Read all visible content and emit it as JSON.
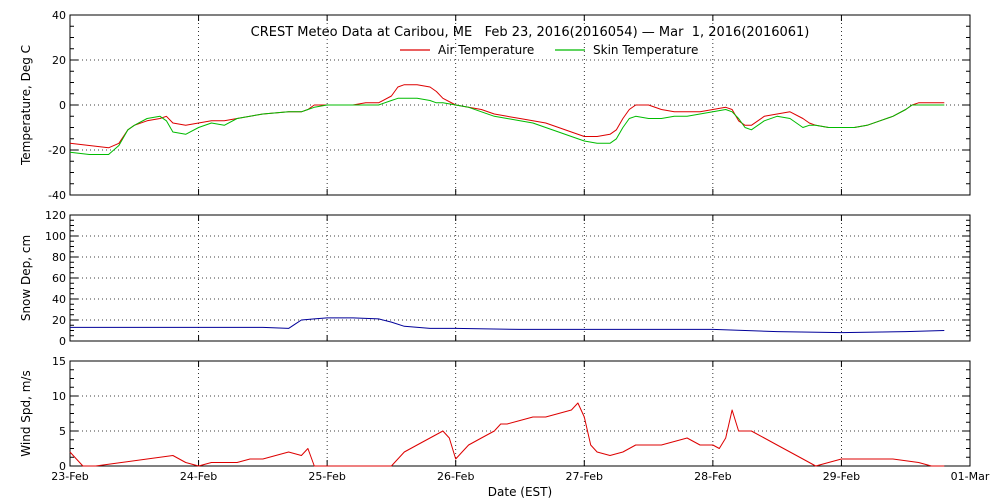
{
  "title": "CREST Meteo Data at Caribou, ME   Feb 23, 2016(2016054) — Mar  1, 2016(2016061)",
  "xlabel": "Date (EST)",
  "x_ticks": [
    "23-Feb",
    "24-Feb",
    "25-Feb",
    "26-Feb",
    "27-Feb",
    "28-Feb",
    "29-Feb",
    "01-Mar"
  ],
  "colors": {
    "air": "#dd0000",
    "skin": "#00bb00",
    "snow": "#000099",
    "wind": "#dd0000"
  },
  "chart_data": [
    {
      "type": "line",
      "ylabel": "Temperature, Deg C",
      "ylim": [
        -40,
        40
      ],
      "yticks": [
        -40,
        -20,
        0,
        20,
        40
      ],
      "xlim": [
        0,
        7
      ],
      "grid": true,
      "legend_position": "top-center",
      "series": [
        {
          "name": "Air Temperature",
          "color_key": "air",
          "x": [
            0,
            0.15,
            0.3,
            0.38,
            0.45,
            0.5,
            0.6,
            0.7,
            0.75,
            0.8,
            0.9,
            1.0,
            1.1,
            1.2,
            1.3,
            1.5,
            1.7,
            1.8,
            1.85,
            1.9,
            2.0,
            2.1,
            2.2,
            2.3,
            2.4,
            2.5,
            2.55,
            2.6,
            2.7,
            2.8,
            2.85,
            2.9,
            3.0,
            3.1,
            3.2,
            3.3,
            3.4,
            3.5,
            3.6,
            3.7,
            3.8,
            3.9,
            4.0,
            4.1,
            4.2,
            4.25,
            4.3,
            4.35,
            4.4,
            4.5,
            4.6,
            4.7,
            4.8,
            4.9,
            5.0,
            5.1,
            5.15,
            5.2,
            5.25,
            5.3,
            5.4,
            5.5,
            5.6,
            5.7,
            5.75,
            5.8,
            5.9,
            6.0,
            6.1,
            6.2,
            6.3,
            6.4,
            6.5,
            6.55,
            6.6,
            6.7,
            6.8
          ],
          "y": [
            -17,
            -18,
            -19,
            -17,
            -11,
            -9,
            -7,
            -6,
            -5,
            -8,
            -9,
            -8,
            -7,
            -7,
            -6,
            -4,
            -3,
            -3,
            -2,
            0,
            0,
            0,
            0,
            1,
            1,
            4,
            8,
            9,
            9,
            8,
            6,
            3,
            0,
            -1,
            -2,
            -4,
            -5,
            -6,
            -7,
            -8,
            -10,
            -12,
            -14,
            -14,
            -13,
            -11,
            -6,
            -2,
            0,
            0,
            -2,
            -3,
            -3,
            -3,
            -2,
            -1,
            -2,
            -7,
            -9,
            -9,
            -5,
            -4,
            -3,
            -6,
            -8,
            -9,
            -10,
            -10,
            -10,
            -9,
            -7,
            -5,
            -2,
            0,
            1,
            1,
            1
          ]
        },
        {
          "name": "Skin Temperature",
          "color_key": "skin",
          "x": [
            0,
            0.15,
            0.3,
            0.38,
            0.45,
            0.5,
            0.6,
            0.7,
            0.75,
            0.8,
            0.9,
            1.0,
            1.1,
            1.2,
            1.3,
            1.5,
            1.7,
            1.8,
            1.85,
            1.9,
            2.0,
            2.1,
            2.2,
            2.3,
            2.4,
            2.5,
            2.55,
            2.6,
            2.7,
            2.8,
            2.85,
            2.9,
            3.0,
            3.1,
            3.2,
            3.3,
            3.4,
            3.5,
            3.6,
            3.7,
            3.8,
            3.9,
            4.0,
            4.1,
            4.2,
            4.25,
            4.3,
            4.35,
            4.4,
            4.5,
            4.6,
            4.7,
            4.8,
            4.9,
            5.0,
            5.1,
            5.15,
            5.2,
            5.25,
            5.3,
            5.4,
            5.5,
            5.6,
            5.7,
            5.75,
            5.8,
            5.9,
            6.0,
            6.1,
            6.2,
            6.3,
            6.4,
            6.5,
            6.55,
            6.6,
            6.7,
            6.8
          ],
          "y": [
            -21,
            -22,
            -22,
            -18,
            -11,
            -9,
            -6,
            -5,
            -7,
            -12,
            -13,
            -10,
            -8,
            -9,
            -6,
            -4,
            -3,
            -3,
            -2,
            -1,
            0,
            0,
            0,
            0,
            0,
            2,
            3,
            3,
            3,
            2,
            1,
            1,
            0,
            -1,
            -3,
            -5,
            -6,
            -7,
            -8,
            -10,
            -12,
            -14,
            -16,
            -17,
            -17,
            -15,
            -10,
            -6,
            -5,
            -6,
            -6,
            -5,
            -5,
            -4,
            -3,
            -2,
            -3,
            -6,
            -10,
            -11,
            -7,
            -5,
            -6,
            -10,
            -9,
            -9,
            -10,
            -10,
            -10,
            -9,
            -7,
            -5,
            -2,
            0,
            0,
            0,
            0
          ]
        }
      ]
    },
    {
      "type": "line",
      "ylabel": "Snow Dep, cm",
      "ylim": [
        0,
        120
      ],
      "yticks": [
        0,
        20,
        40,
        60,
        80,
        100,
        120
      ],
      "xlim": [
        0,
        7
      ],
      "grid": true,
      "series": [
        {
          "color_key": "snow",
          "x": [
            0,
            0.5,
            1.0,
            1.5,
            1.7,
            1.75,
            1.8,
            1.9,
            2.0,
            2.2,
            2.4,
            2.5,
            2.6,
            2.8,
            3.0,
            3.5,
            4.0,
            4.5,
            5.0,
            5.5,
            6.0,
            6.5,
            6.8
          ],
          "y": [
            13,
            13,
            13,
            13,
            12,
            16,
            20,
            21,
            22,
            22,
            21,
            18,
            14,
            12,
            12,
            11,
            11,
            11,
            11,
            9,
            8,
            9,
            10
          ]
        }
      ]
    },
    {
      "type": "line",
      "ylabel": "Wind Spd, m/s",
      "ylim": [
        0,
        15
      ],
      "yticks": [
        0,
        5,
        10,
        15
      ],
      "xlim": [
        0,
        7
      ],
      "grid": true,
      "series": [
        {
          "color_key": "wind",
          "x": [
            0,
            0.05,
            0.1,
            0.2,
            0.4,
            0.6,
            0.8,
            0.9,
            1.0,
            1.1,
            1.2,
            1.3,
            1.4,
            1.5,
            1.6,
            1.7,
            1.8,
            1.85,
            1.9,
            2.0,
            2.2,
            2.4,
            2.5,
            2.6,
            2.7,
            2.8,
            2.9,
            2.95,
            3.0,
            3.05,
            3.1,
            3.2,
            3.3,
            3.35,
            3.4,
            3.5,
            3.6,
            3.7,
            3.8,
            3.9,
            3.95,
            4.0,
            4.05,
            4.1,
            4.2,
            4.3,
            4.4,
            4.5,
            4.6,
            4.7,
            4.8,
            4.9,
            5.0,
            5.05,
            5.1,
            5.15,
            5.2,
            5.3,
            5.4,
            5.5,
            5.6,
            5.7,
            5.8,
            5.9,
            6.0,
            6.2,
            6.4,
            6.6,
            6.7,
            6.8
          ],
          "y": [
            2,
            1,
            0,
            0,
            0.5,
            1,
            1.5,
            0.5,
            0,
            0.5,
            0.5,
            0.5,
            1,
            1,
            1.5,
            2,
            1.5,
            2.5,
            0,
            0,
            0,
            0,
            0,
            2,
            3,
            4,
            5,
            4,
            1,
            2,
            3,
            4,
            5,
            6,
            6,
            6.5,
            7,
            7,
            7.5,
            8,
            9,
            7,
            3,
            2,
            1.5,
            2,
            3,
            3,
            3,
            3.5,
            4,
            3,
            3,
            2.5,
            4,
            8,
            5,
            5,
            4,
            3,
            2,
            1,
            0,
            0.5,
            1,
            1,
            1,
            0.5,
            0,
            0
          ]
        }
      ]
    }
  ]
}
